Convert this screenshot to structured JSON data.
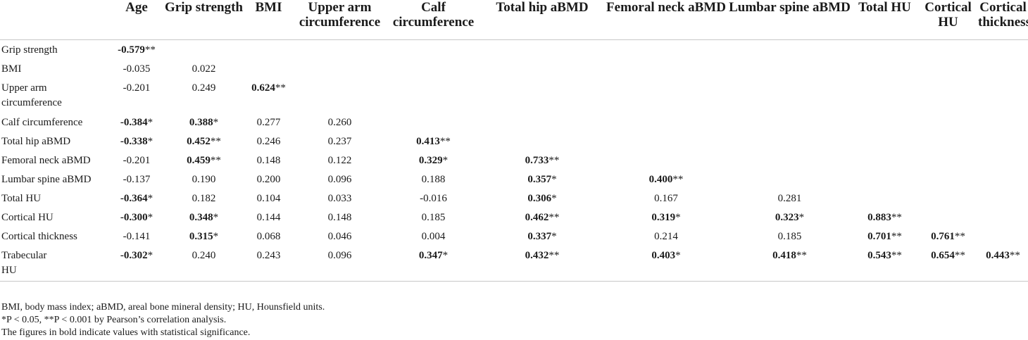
{
  "headers": [
    "",
    "Age",
    "Grip strength",
    "BMI",
    "Upper arm circumference",
    "Calf circumference",
    "Total hip aBMD",
    "Femoral neck aBMD",
    "Lumbar spine aBMD",
    "Total HU",
    "Cortical HU",
    "Cortical thickness"
  ],
  "rows": [
    {
      "label": "Grip strength",
      "cells": [
        {
          "v": "-0.579",
          "b": true,
          "s": "**"
        }
      ]
    },
    {
      "label": "BMI",
      "cells": [
        {
          "v": "-0.035",
          "b": false,
          "s": ""
        },
        {
          "v": "0.022",
          "b": false,
          "s": ""
        }
      ]
    },
    {
      "label": "Upper arm circumference",
      "cells": [
        {
          "v": "-0.201",
          "b": false,
          "s": ""
        },
        {
          "v": "0.249",
          "b": false,
          "s": ""
        },
        {
          "v": "0.624",
          "b": true,
          "s": "**"
        }
      ]
    },
    {
      "label": "Calf circumference",
      "cells": [
        {
          "v": "-0.384",
          "b": true,
          "s": "*"
        },
        {
          "v": "0.388",
          "b": true,
          "s": "*"
        },
        {
          "v": "0.277",
          "b": false,
          "s": ""
        },
        {
          "v": "0.260",
          "b": false,
          "s": ""
        }
      ]
    },
    {
      "label": "Total hip aBMD",
      "cells": [
        {
          "v": "-0.338",
          "b": true,
          "s": "*"
        },
        {
          "v": "0.452",
          "b": true,
          "s": "**"
        },
        {
          "v": "0.246",
          "b": false,
          "s": ""
        },
        {
          "v": "0.237",
          "b": false,
          "s": ""
        },
        {
          "v": "0.413",
          "b": true,
          "s": "**"
        }
      ]
    },
    {
      "label": "Femoral neck aBMD",
      "cells": [
        {
          "v": "-0.201",
          "b": false,
          "s": ""
        },
        {
          "v": "0.459",
          "b": true,
          "s": "**"
        },
        {
          "v": "0.148",
          "b": false,
          "s": ""
        },
        {
          "v": "0.122",
          "b": false,
          "s": ""
        },
        {
          "v": "0.329",
          "b": true,
          "s": "*"
        },
        {
          "v": "0.733",
          "b": true,
          "s": "**"
        }
      ]
    },
    {
      "label": "Lumbar spine aBMD",
      "cells": [
        {
          "v": "-0.137",
          "b": false,
          "s": ""
        },
        {
          "v": "0.190",
          "b": false,
          "s": ""
        },
        {
          "v": "0.200",
          "b": false,
          "s": ""
        },
        {
          "v": "0.096",
          "b": false,
          "s": ""
        },
        {
          "v": "0.188",
          "b": false,
          "s": ""
        },
        {
          "v": "0.357",
          "b": true,
          "s": "*"
        },
        {
          "v": "0.400",
          "b": true,
          "s": "**"
        }
      ]
    },
    {
      "label": "Total HU",
      "cells": [
        {
          "v": "-0.364",
          "b": true,
          "s": "*"
        },
        {
          "v": "0.182",
          "b": false,
          "s": ""
        },
        {
          "v": "0.104",
          "b": false,
          "s": ""
        },
        {
          "v": "0.033",
          "b": false,
          "s": ""
        },
        {
          "v": "-0.016",
          "b": false,
          "s": ""
        },
        {
          "v": "0.306",
          "b": true,
          "s": "*"
        },
        {
          "v": "0.167",
          "b": false,
          "s": ""
        },
        {
          "v": "0.281",
          "b": false,
          "s": ""
        }
      ]
    },
    {
      "label": "Cortical HU",
      "cells": [
        {
          "v": "-0.300",
          "b": true,
          "s": "*"
        },
        {
          "v": "0.348",
          "b": true,
          "s": "*"
        },
        {
          "v": "0.144",
          "b": false,
          "s": ""
        },
        {
          "v": "0.148",
          "b": false,
          "s": ""
        },
        {
          "v": "0.185",
          "b": false,
          "s": ""
        },
        {
          "v": "0.462",
          "b": true,
          "s": "**"
        },
        {
          "v": "0.319",
          "b": true,
          "s": "*"
        },
        {
          "v": "0.323",
          "b": true,
          "s": "*"
        },
        {
          "v": "0.883",
          "b": true,
          "s": "**"
        }
      ]
    },
    {
      "label": "Cortical thickness",
      "cells": [
        {
          "v": "-0.141",
          "b": false,
          "s": ""
        },
        {
          "v": "0.315",
          "b": true,
          "s": "*"
        },
        {
          "v": "0.068",
          "b": false,
          "s": ""
        },
        {
          "v": "0.046",
          "b": false,
          "s": ""
        },
        {
          "v": "0.004",
          "b": false,
          "s": ""
        },
        {
          "v": "0.337",
          "b": true,
          "s": "*"
        },
        {
          "v": "0.214",
          "b": false,
          "s": ""
        },
        {
          "v": "0.185",
          "b": false,
          "s": ""
        },
        {
          "v": "0.701",
          "b": true,
          "s": "**"
        },
        {
          "v": "0.761",
          "b": true,
          "s": "**"
        }
      ]
    },
    {
      "label": "Trabecular HU",
      "cells": [
        {
          "v": "-0.302",
          "b": true,
          "s": "*"
        },
        {
          "v": "0.240",
          "b": false,
          "s": ""
        },
        {
          "v": "0.243",
          "b": false,
          "s": ""
        },
        {
          "v": "0.096",
          "b": false,
          "s": ""
        },
        {
          "v": "0.347",
          "b": true,
          "s": "*"
        },
        {
          "v": "0.432",
          "b": true,
          "s": "**"
        },
        {
          "v": "0.403",
          "b": true,
          "s": "*"
        },
        {
          "v": "0.418",
          "b": true,
          "s": "**"
        },
        {
          "v": "0.543",
          "b": true,
          "s": "**"
        },
        {
          "v": "0.654",
          "b": true,
          "s": "**"
        },
        {
          "v": "0.443",
          "b": true,
          "s": "**"
        }
      ]
    }
  ],
  "notes": {
    "abbrev": "BMI, body mass index; aBMD, areal bone mineral density; HU, Hounsfield units.",
    "pvalues": "*P < 0.05, **P < 0.001 by Pearson’s correlation analysis.",
    "bold": "The figures in bold indicate values with statistical significance."
  }
}
